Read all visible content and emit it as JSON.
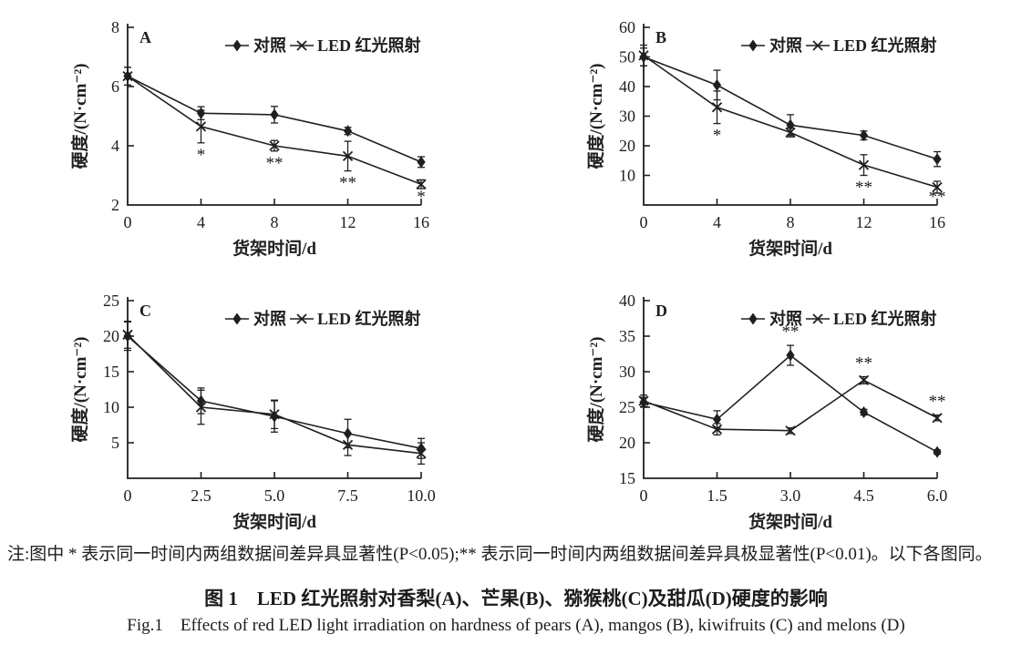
{
  "colors": {
    "ink": "#1f1f1f",
    "background": "#ffffff"
  },
  "figure": {
    "note": "注:图中 * 表示同一时间内两组数据间差异具显著性(P<0.05);** 表示同一时间内两组数据间差异具极显著性(P<0.01)。以下各图同。",
    "title_cn": "图 1　LED 红光照射对香梨(A)、芒果(B)、猕猴桃(C)及甜瓜(D)硬度的影响",
    "title_en": "Fig.1　Effects of red LED light irradiation on hardness of pears (A), mangos (B), kiwifruits (C) and melons (D)"
  },
  "chart_data": [
    {
      "type": "line",
      "panel": "A",
      "xlabel": "货架时间/d",
      "ylabel": "硬度/(N·cm⁻²)",
      "xlim": [
        0,
        16
      ],
      "ylim": [
        2,
        8
      ],
      "x": [
        0,
        4,
        8,
        12,
        16
      ],
      "x_tick_labels": [
        "0",
        "4",
        "8",
        "12",
        "16"
      ],
      "y_ticks": [
        2,
        4,
        6,
        8
      ],
      "legend_position": "top-inside",
      "series": [
        {
          "name": "对照",
          "marker": "diamond",
          "values": [
            6.35,
            5.1,
            5.05,
            4.5,
            3.45
          ],
          "errors": [
            0.3,
            0.22,
            0.28,
            0.12,
            0.18
          ]
        },
        {
          "name": "LED 红光照射",
          "marker": "x",
          "values": [
            6.35,
            4.65,
            4.0,
            3.65,
            2.7
          ],
          "errors": [
            0.3,
            0.55,
            0.18,
            0.5,
            0.15
          ]
        }
      ],
      "significance": [
        {
          "x": 4,
          "series_index": 1,
          "label": "*",
          "position": "below"
        },
        {
          "x": 8,
          "series_index": 1,
          "label": "**",
          "position": "below"
        },
        {
          "x": 12,
          "series_index": 1,
          "label": "**",
          "position": "below"
        },
        {
          "x": 16,
          "series_index": 1,
          "label": "*",
          "position": "below"
        }
      ]
    },
    {
      "type": "line",
      "panel": "B",
      "xlabel": "货架时间/d",
      "ylabel": "硬度/(N·cm⁻²)",
      "xlim": [
        0,
        16
      ],
      "ylim": [
        0,
        60
      ],
      "x": [
        0,
        4,
        8,
        12,
        16
      ],
      "x_tick_labels": [
        "0",
        "4",
        "8",
        "12",
        "16"
      ],
      "y_ticks": [
        10,
        20,
        30,
        40,
        50,
        60
      ],
      "legend_position": "top-inside",
      "series": [
        {
          "name": "对照",
          "marker": "diamond",
          "values": [
            50,
            40.5,
            27,
            23.5,
            15.5
          ],
          "errors": [
            3,
            5,
            3.5,
            1.5,
            2.5
          ]
        },
        {
          "name": "LED 红光照射",
          "marker": "x",
          "values": [
            50.5,
            33,
            24.5,
            13.5,
            6
          ],
          "errors": [
            3.5,
            5.5,
            1.5,
            3.5,
            2
          ]
        }
      ],
      "significance": [
        {
          "x": 4,
          "series_index": 1,
          "label": "*",
          "position": "below"
        },
        {
          "x": 12,
          "series_index": 1,
          "label": "**",
          "position": "below"
        },
        {
          "x": 16,
          "series_index": 1,
          "label": "**",
          "position": "below"
        }
      ]
    },
    {
      "type": "line",
      "panel": "C",
      "xlabel": "货架时间/d",
      "ylabel": "硬度/(N·cm⁻²)",
      "xlim": [
        0,
        10
      ],
      "ylim": [
        0,
        25
      ],
      "x": [
        0,
        2.5,
        5,
        7.5,
        10
      ],
      "x_tick_labels": [
        "0",
        "2.5",
        "5.0",
        "7.5",
        "10.0"
      ],
      "y_ticks": [
        5,
        10,
        15,
        20,
        25
      ],
      "legend_position": "top-inside",
      "series": [
        {
          "name": "对照",
          "marker": "diamond",
          "values": [
            20,
            10.9,
            8.7,
            6.3,
            4.2
          ],
          "errors": [
            2,
            1.8,
            2.2,
            2,
            1.4
          ]
        },
        {
          "name": "LED 红光照射",
          "marker": "x",
          "values": [
            20.2,
            10,
            9,
            4.7,
            3.5
          ],
          "errors": [
            1.9,
            2.4,
            2,
            1.5,
            1.5
          ]
        }
      ],
      "significance": []
    },
    {
      "type": "line",
      "panel": "D",
      "xlabel": "货架时间/d",
      "ylabel": "硬度/(N·cm⁻²)",
      "xlim": [
        0,
        6
      ],
      "ylim": [
        15,
        40
      ],
      "x": [
        0,
        1.5,
        3,
        4.5,
        6
      ],
      "x_tick_labels": [
        "0",
        "1.5",
        "3.0",
        "4.5",
        "6.0"
      ],
      "y_ticks": [
        15,
        20,
        25,
        30,
        35,
        40
      ],
      "legend_position": "top-inside",
      "series": [
        {
          "name": "对照",
          "marker": "diamond",
          "values": [
            25.7,
            23.3,
            32.3,
            24.3,
            18.7
          ],
          "errors": [
            0.7,
            1.2,
            1.4,
            0.4,
            0.3
          ]
        },
        {
          "name": "LED 红光照射",
          "marker": "x",
          "values": [
            25.9,
            21.9,
            21.7,
            28.8,
            23.5
          ],
          "errors": [
            0.8,
            0.8,
            0.4,
            0.5,
            0.4
          ]
        }
      ],
      "significance": [
        {
          "x": 3,
          "series_index": 0,
          "label": "**",
          "position": "above"
        },
        {
          "x": 4.5,
          "series_index": 1,
          "label": "**",
          "position": "above"
        },
        {
          "x": 6,
          "series_index": 1,
          "label": "**",
          "position": "above"
        }
      ]
    }
  ]
}
